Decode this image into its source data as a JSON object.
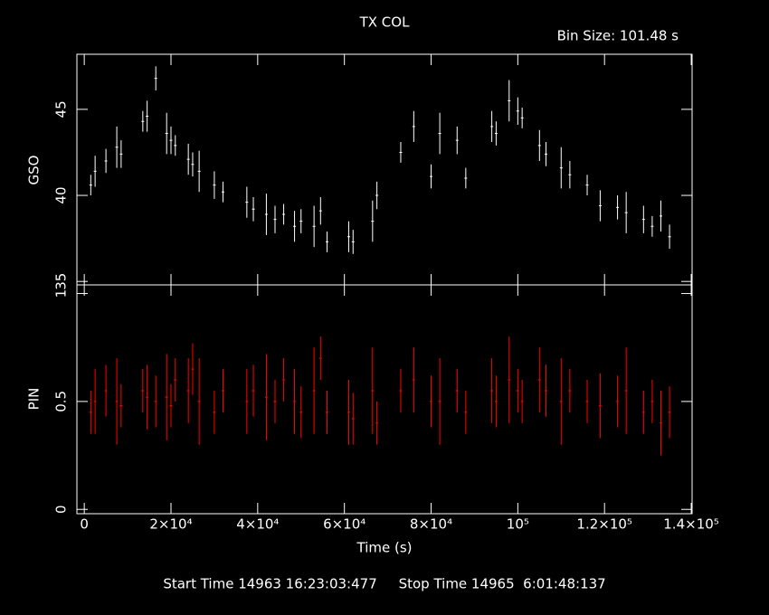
{
  "footer": "Start Time 14963 16:23:03:477     Stop Time 14965  6:01:48:137",
  "chart_data": [
    {
      "type": "errorbar",
      "title": "TX COL",
      "subtitle": "Bin Size: 101.48 s",
      "y_label": "GSO",
      "color": "#ffffff",
      "ylim": [
        34.8,
        48.2
      ],
      "yticks": [
        35,
        40,
        45
      ],
      "x": [
        1500,
        2500,
        5000,
        7500,
        8500,
        13500,
        14500,
        16500,
        19000,
        20000,
        21000,
        24000,
        25000,
        26500,
        30000,
        32000,
        37500,
        39000,
        42000,
        44000,
        46000,
        48500,
        50000,
        53000,
        54500,
        56000,
        61000,
        62000,
        66500,
        67500,
        73000,
        76000,
        80000,
        82000,
        86000,
        88000,
        94000,
        95000,
        98000,
        100000,
        101000,
        105000,
        106500,
        110000,
        112000,
        116000,
        119000,
        123000,
        125000,
        129000,
        131000,
        133000,
        135000
      ],
      "values": [
        40.6,
        41.4,
        42.0,
        42.8,
        42.4,
        44.3,
        44.6,
        46.8,
        43.6,
        43.2,
        42.9,
        42.1,
        41.8,
        41.4,
        40.6,
        40.2,
        39.6,
        39.2,
        38.9,
        38.6,
        38.9,
        38.2,
        38.5,
        38.2,
        39.1,
        37.3,
        37.6,
        37.3,
        38.5,
        40.0,
        42.5,
        44.0,
        41.1,
        43.6,
        43.2,
        41.0,
        44.0,
        43.6,
        45.5,
        44.9,
        44.5,
        42.9,
        42.4,
        41.6,
        41.2,
        40.6,
        39.4,
        39.3,
        39.0,
        38.6,
        38.2,
        38.8,
        37.6
      ],
      "errors": [
        0.6,
        0.9,
        0.7,
        1.2,
        0.8,
        0.6,
        0.9,
        0.7,
        1.2,
        0.8,
        0.6,
        0.9,
        0.7,
        1.2,
        0.8,
        0.6,
        0.9,
        0.7,
        1.2,
        0.8,
        0.6,
        0.9,
        0.7,
        1.2,
        0.8,
        0.6,
        0.9,
        0.7,
        1.2,
        0.8,
        0.6,
        0.9,
        0.7,
        1.2,
        0.8,
        0.6,
        0.9,
        0.7,
        1.2,
        0.8,
        0.6,
        0.9,
        0.7,
        1.2,
        0.8,
        0.6,
        0.9,
        0.7,
        1.2,
        0.8,
        0.6,
        0.9,
        0.7
      ]
    },
    {
      "type": "errorbar",
      "y_label": "PIN",
      "x_label": "Time (s)",
      "color": "#ff0000",
      "ylim": [
        -0.02,
        1.04
      ],
      "yticks": [
        0,
        0.5,
        1
      ],
      "xlim": [
        -1700,
        140200
      ],
      "xticks": [
        0,
        {
          "value": 20000,
          "label": "2×10⁴"
        },
        {
          "value": 40000,
          "label": "4×10⁴"
        },
        {
          "value": 60000,
          "label": "6×10⁴"
        },
        {
          "value": 80000,
          "label": "8×10⁴"
        },
        {
          "value": 100000,
          "label": "10⁵"
        },
        {
          "value": 120000,
          "label": "1.2×10⁵"
        },
        {
          "value": 140000,
          "label": "1.4×10⁵"
        }
      ],
      "x": [
        1500,
        2500,
        5000,
        7500,
        8500,
        13500,
        14500,
        16500,
        19000,
        20000,
        21000,
        24000,
        25000,
        26500,
        30000,
        32000,
        37500,
        39000,
        42000,
        44000,
        46000,
        48500,
        50000,
        53000,
        54500,
        56000,
        61000,
        62000,
        66500,
        67500,
        73000,
        76000,
        80000,
        82000,
        86000,
        88000,
        94000,
        95000,
        98000,
        100000,
        101000,
        105000,
        106500,
        110000,
        112000,
        116000,
        119000,
        123000,
        125000,
        129000,
        131000,
        133000,
        135000
      ],
      "values": [
        0.45,
        0.5,
        0.55,
        0.5,
        0.48,
        0.55,
        0.52,
        0.5,
        0.52,
        0.48,
        0.6,
        0.55,
        0.65,
        0.5,
        0.45,
        0.55,
        0.5,
        0.55,
        0.52,
        0.5,
        0.6,
        0.5,
        0.45,
        0.55,
        0.7,
        0.45,
        0.45,
        0.42,
        0.55,
        0.4,
        0.55,
        0.6,
        0.5,
        0.5,
        0.55,
        0.45,
        0.55,
        0.5,
        0.6,
        0.55,
        0.5,
        0.6,
        0.55,
        0.5,
        0.55,
        0.5,
        0.48,
        0.5,
        0.55,
        0.45,
        0.5,
        0.4,
        0.45
      ],
      "errors": [
        0.1,
        0.15,
        0.12,
        0.2,
        0.1,
        0.1,
        0.15,
        0.12,
        0.2,
        0.1,
        0.1,
        0.15,
        0.12,
        0.2,
        0.1,
        0.1,
        0.15,
        0.12,
        0.2,
        0.1,
        0.1,
        0.15,
        0.12,
        0.2,
        0.1,
        0.1,
        0.15,
        0.12,
        0.2,
        0.1,
        0.1,
        0.15,
        0.12,
        0.2,
        0.1,
        0.1,
        0.15,
        0.12,
        0.2,
        0.1,
        0.1,
        0.15,
        0.12,
        0.2,
        0.1,
        0.1,
        0.15,
        0.12,
        0.2,
        0.1,
        0.1,
        0.15,
        0.12
      ]
    }
  ]
}
